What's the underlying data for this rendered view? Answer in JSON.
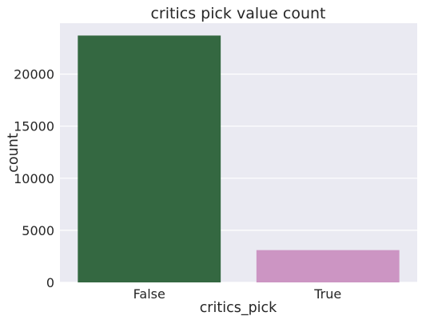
{
  "chart_data": {
    "type": "bar",
    "title": "critics pick value count",
    "xlabel": "critics_pick",
    "ylabel": "count",
    "categories": [
      "False",
      "True"
    ],
    "values": [
      23700,
      3100
    ],
    "colors": [
      "#346841",
      "#cc95c3"
    ],
    "ylim": [
      0,
      24885
    ],
    "yticks": [
      0,
      5000,
      10000,
      15000,
      20000
    ],
    "grid": true,
    "background": "#eaeaf2",
    "legend": "none"
  }
}
